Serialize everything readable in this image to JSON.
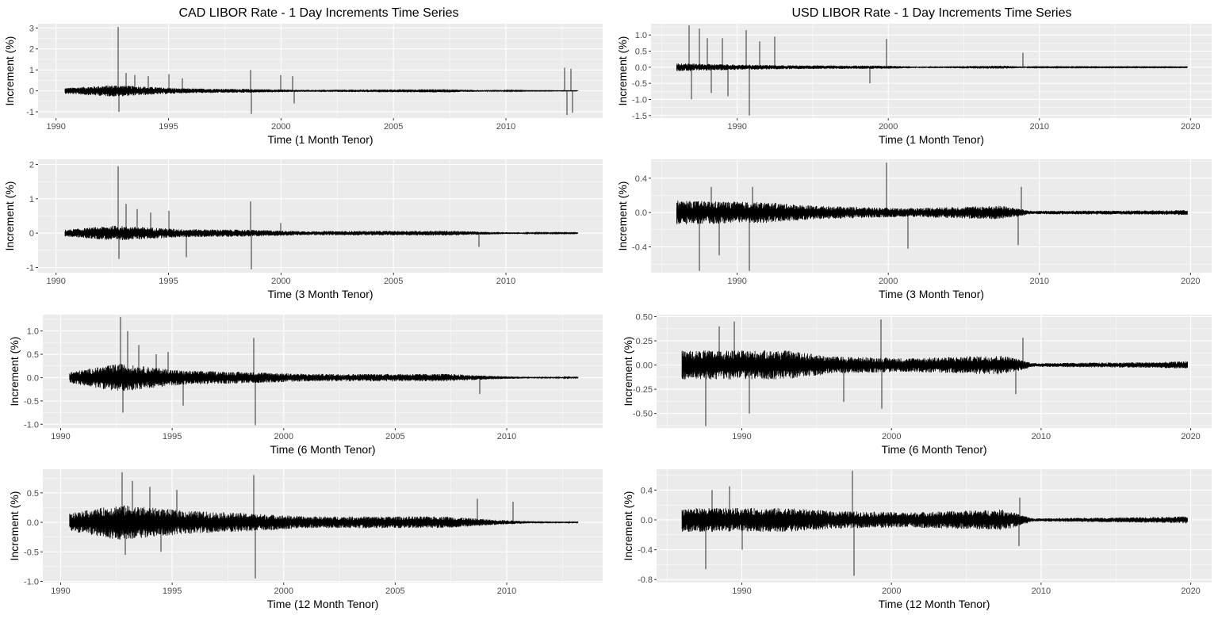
{
  "columns": [
    {
      "title": "CAD LIBOR Rate - 1 Day Increments Time Series"
    },
    {
      "title": "USD LIBOR Rate - 1 Day Increments Time Series"
    }
  ],
  "chart_data": [
    {
      "type": "line",
      "currency": "CAD",
      "tenor": "1 Month",
      "xlabel": "Time (1 Month Tenor)",
      "ylabel": "Increment (%)",
      "xlim": [
        1989.2,
        2014.3
      ],
      "ylim": [
        -1.3,
        3.2
      ],
      "xticks": [
        1990,
        1995,
        2000,
        2005,
        2010
      ],
      "yticks": [
        -1,
        0,
        1,
        2,
        3
      ],
      "ytick_labels": [
        "-1",
        "0",
        "1",
        "2",
        "3"
      ],
      "start": 1990.4,
      "end": 2013.2,
      "bands": [
        [
          1990.4,
          0.14
        ],
        [
          1992.6,
          0.28
        ],
        [
          1995.5,
          0.12
        ],
        [
          1998.5,
          0.09
        ],
        [
          2001,
          0.05
        ],
        [
          2007.3,
          0.08
        ],
        [
          2009.2,
          0.03
        ],
        [
          2011,
          0.012
        ],
        [
          2013.2,
          0.008
        ]
      ],
      "spikes": [
        [
          1992.75,
          3.05
        ],
        [
          1992.8,
          -1.0
        ],
        [
          1993.1,
          0.85
        ],
        [
          1993.5,
          0.75
        ],
        [
          1994.1,
          0.7
        ],
        [
          1995.0,
          0.8
        ],
        [
          1995.6,
          0.6
        ],
        [
          1998.65,
          1.0
        ],
        [
          1998.7,
          -1.1
        ],
        [
          2000.0,
          0.75
        ],
        [
          2000.5,
          0.7
        ],
        [
          2000.6,
          -0.6
        ],
        [
          2012.6,
          1.1
        ],
        [
          2012.7,
          -1.15
        ],
        [
          2012.9,
          1.05
        ],
        [
          2012.95,
          -1.05
        ]
      ]
    },
    {
      "type": "line",
      "currency": "CAD",
      "tenor": "3 Month",
      "xlabel": "Time (3 Month Tenor)",
      "ylabel": "Increment (%)",
      "xlim": [
        1989.2,
        2014.3
      ],
      "ylim": [
        -1.15,
        2.15
      ],
      "xticks": [
        1990,
        1995,
        2000,
        2005,
        2010
      ],
      "yticks": [
        -1,
        0,
        1,
        2
      ],
      "ytick_labels": [
        "-1",
        "0",
        "1",
        "2"
      ],
      "start": 1990.4,
      "end": 2013.2,
      "bands": [
        [
          1990.4,
          0.1
        ],
        [
          1992.6,
          0.22
        ],
        [
          1995.5,
          0.12
        ],
        [
          1998.5,
          0.1
        ],
        [
          2001,
          0.06
        ],
        [
          2007.3,
          0.07
        ],
        [
          2009.2,
          0.04
        ],
        [
          2011,
          0.015
        ],
        [
          2013.2,
          0.01
        ]
      ],
      "spikes": [
        [
          1992.75,
          1.95
        ],
        [
          1992.8,
          -0.75
        ],
        [
          1993.1,
          0.85
        ],
        [
          1993.6,
          0.7
        ],
        [
          1994.2,
          0.6
        ],
        [
          1995.0,
          0.65
        ],
        [
          1995.8,
          -0.7
        ],
        [
          1998.65,
          0.92
        ],
        [
          1998.7,
          -1.05
        ],
        [
          2000.0,
          0.3
        ],
        [
          2008.8,
          -0.4
        ]
      ]
    },
    {
      "type": "line",
      "currency": "CAD",
      "tenor": "6 Month",
      "xlabel": "Time (6 Month Tenor)",
      "ylabel": "Increment (%)",
      "xlim": [
        1989.2,
        2014.3
      ],
      "ylim": [
        -1.08,
        1.35
      ],
      "xticks": [
        1990,
        1995,
        2000,
        2005,
        2010
      ],
      "yticks": [
        -1,
        -0.5,
        0,
        0.5,
        1
      ],
      "ytick_labels": [
        "-1.0",
        "-0.5",
        "0.0",
        "0.5",
        "1.0"
      ],
      "start": 1990.4,
      "end": 2013.2,
      "bands": [
        [
          1990.4,
          0.12
        ],
        [
          1992.6,
          0.3
        ],
        [
          1995.5,
          0.15
        ],
        [
          1998.5,
          0.12
        ],
        [
          2001,
          0.08
        ],
        [
          2007.3,
          0.08
        ],
        [
          2009.2,
          0.04
        ],
        [
          2011,
          0.015
        ],
        [
          2013.2,
          0.01
        ]
      ],
      "spikes": [
        [
          1992.7,
          1.3
        ],
        [
          1992.8,
          -0.75
        ],
        [
          1993.0,
          1.0
        ],
        [
          1993.5,
          0.7
        ],
        [
          1994.3,
          0.5
        ],
        [
          1994.8,
          0.55
        ],
        [
          1995.5,
          -0.6
        ],
        [
          1998.65,
          0.85
        ],
        [
          1998.72,
          -1.02
        ],
        [
          2008.8,
          -0.35
        ]
      ]
    },
    {
      "type": "line",
      "currency": "CAD",
      "tenor": "12 Month",
      "xlabel": "Time (12 Month Tenor)",
      "ylabel": "Increment (%)",
      "xlim": [
        1989.2,
        2014.3
      ],
      "ylim": [
        -1.02,
        0.9
      ],
      "xticks": [
        1990,
        1995,
        2000,
        2005,
        2010
      ],
      "yticks": [
        -1,
        -0.5,
        0,
        0.5
      ],
      "ytick_labels": [
        "-1.0",
        "-0.5",
        "0.0",
        "0.5"
      ],
      "start": 1990.4,
      "end": 2013.2,
      "bands": [
        [
          1990.4,
          0.15
        ],
        [
          1992.6,
          0.3
        ],
        [
          1995.5,
          0.2
        ],
        [
          1998.5,
          0.15
        ],
        [
          2001,
          0.1
        ],
        [
          2007.3,
          0.1
        ],
        [
          2009.2,
          0.05
        ],
        [
          2011,
          0.02
        ],
        [
          2013.2,
          0.012
        ]
      ],
      "spikes": [
        [
          1992.75,
          0.85
        ],
        [
          1992.9,
          -0.55
        ],
        [
          1993.2,
          0.7
        ],
        [
          1994.0,
          0.6
        ],
        [
          1994.5,
          -0.5
        ],
        [
          1995.2,
          0.55
        ],
        [
          1998.65,
          0.8
        ],
        [
          1998.72,
          -0.95
        ],
        [
          2008.7,
          0.4
        ],
        [
          2010.3,
          0.35
        ]
      ]
    },
    {
      "type": "line",
      "currency": "USD",
      "tenor": "1 Month",
      "xlabel": "Time (1 Month Tenor)",
      "ylabel": "Increment (%)",
      "xlim": [
        1984.3,
        2021.4
      ],
      "ylim": [
        -1.58,
        1.35
      ],
      "xticks": [
        1990,
        2000,
        2010,
        2020
      ],
      "yticks": [
        -1.5,
        -1,
        -0.5,
        0,
        0.5,
        1
      ],
      "ytick_labels": [
        "-1.5",
        "-1.0",
        "-0.5",
        "0.0",
        "0.5",
        "1.0"
      ],
      "start": 1986.0,
      "end": 2019.8,
      "bands": [
        [
          1986.0,
          0.12
        ],
        [
          1993.0,
          0.06
        ],
        [
          2000.0,
          0.05
        ],
        [
          2002.0,
          0.02
        ],
        [
          2007.5,
          0.05
        ],
        [
          2009.5,
          0.012
        ],
        [
          2019.8,
          0.01
        ]
      ],
      "spikes": [
        [
          1986.8,
          1.3
        ],
        [
          1987.0,
          -1.0
        ],
        [
          1987.5,
          1.2
        ],
        [
          1988.0,
          0.9
        ],
        [
          1988.3,
          -0.8
        ],
        [
          1989.0,
          0.9
        ],
        [
          1989.4,
          -0.9
        ],
        [
          1990.6,
          1.15
        ],
        [
          1990.8,
          -1.5
        ],
        [
          1991.5,
          0.8
        ],
        [
          1992.5,
          0.95
        ],
        [
          1998.8,
          -0.5
        ],
        [
          1999.9,
          0.88
        ],
        [
          2008.9,
          0.45
        ]
      ]
    },
    {
      "type": "line",
      "currency": "USD",
      "tenor": "3 Month",
      "xlabel": "Time (3 Month Tenor)",
      "ylabel": "Increment (%)",
      "xlim": [
        1984.3,
        2021.4
      ],
      "ylim": [
        -0.7,
        0.62
      ],
      "xticks": [
        1990,
        2000,
        2010,
        2020
      ],
      "yticks": [
        -0.4,
        0,
        0.4
      ],
      "ytick_labels": [
        "-0.4",
        "0.0",
        "0.4"
      ],
      "start": 1986.0,
      "end": 2019.8,
      "bands": [
        [
          1986.0,
          0.14
        ],
        [
          1992.0,
          0.12
        ],
        [
          1995.0,
          0.08
        ],
        [
          2001.0,
          0.05
        ],
        [
          2007.5,
          0.08
        ],
        [
          2009.5,
          0.02
        ],
        [
          2018.0,
          0.025
        ],
        [
          2019.8,
          0.03
        ]
      ],
      "spikes": [
        [
          1987.5,
          -0.68
        ],
        [
          1988.3,
          0.3
        ],
        [
          1988.8,
          -0.5
        ],
        [
          1990.8,
          -0.68
        ],
        [
          1991.0,
          0.3
        ],
        [
          1999.9,
          0.58
        ],
        [
          2001.3,
          -0.42
        ],
        [
          2008.8,
          0.3
        ],
        [
          2008.6,
          -0.38
        ]
      ]
    },
    {
      "type": "line",
      "currency": "USD",
      "tenor": "6 Month",
      "xlabel": "Time (6 Month Tenor)",
      "ylabel": "Increment (%)",
      "xlim": [
        1984.3,
        2021.4
      ],
      "ylim": [
        -0.65,
        0.52
      ],
      "xticks": [
        1990,
        2000,
        2010,
        2020
      ],
      "yticks": [
        -0.5,
        -0.25,
        0,
        0.25,
        0.5
      ],
      "ytick_labels": [
        "-0.50",
        "-0.25",
        "0.00",
        "0.25",
        "0.50"
      ],
      "start": 1986.0,
      "end": 2019.8,
      "bands": [
        [
          1986.0,
          0.15
        ],
        [
          1993.0,
          0.15
        ],
        [
          1996.0,
          0.09
        ],
        [
          2001.0,
          0.07
        ],
        [
          2007.5,
          0.1
        ],
        [
          2009.5,
          0.02
        ],
        [
          2018.0,
          0.03
        ],
        [
          2019.8,
          0.04
        ]
      ],
      "spikes": [
        [
          1987.6,
          -0.63
        ],
        [
          1988.5,
          0.4
        ],
        [
          1989.5,
          0.45
        ],
        [
          1990.5,
          -0.5
        ],
        [
          1996.8,
          -0.38
        ],
        [
          1999.3,
          0.47
        ],
        [
          1999.35,
          -0.45
        ],
        [
          2008.8,
          0.28
        ],
        [
          2008.3,
          -0.3
        ]
      ]
    },
    {
      "type": "line",
      "currency": "USD",
      "tenor": "12 Month",
      "xlabel": "Time (12 Month Tenor)",
      "ylabel": "Increment (%)",
      "xlim": [
        1984.3,
        2021.4
      ],
      "ylim": [
        -0.84,
        0.68
      ],
      "xticks": [
        1990,
        2000,
        2010,
        2020
      ],
      "yticks": [
        -0.8,
        -0.4,
        0,
        0.4
      ],
      "ytick_labels": [
        "-0.8",
        "-0.4",
        "0.0",
        "0.4"
      ],
      "start": 1986.0,
      "end": 2019.8,
      "bands": [
        [
          1986.0,
          0.16
        ],
        [
          1993.0,
          0.16
        ],
        [
          1996.0,
          0.12
        ],
        [
          2001.0,
          0.1
        ],
        [
          2007.5,
          0.14
        ],
        [
          2009.5,
          0.02
        ],
        [
          2018.0,
          0.04
        ],
        [
          2019.8,
          0.05
        ]
      ],
      "spikes": [
        [
          1987.6,
          -0.66
        ],
        [
          1988.0,
          0.4
        ],
        [
          1989.2,
          0.45
        ],
        [
          1990.0,
          -0.4
        ],
        [
          1997.4,
          0.66
        ],
        [
          1997.5,
          -0.75
        ],
        [
          2008.6,
          0.3
        ],
        [
          2008.5,
          -0.35
        ]
      ]
    }
  ]
}
